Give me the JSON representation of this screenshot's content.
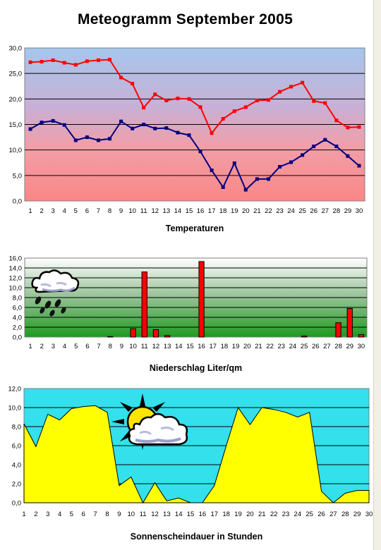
{
  "page": {
    "title": "Meteogramm  September 2005"
  },
  "chart_data": [
    {
      "type": "line",
      "xlabel": "Temperaturen",
      "ylim": [
        0,
        30
      ],
      "y_ticks": [
        "0,0",
        "5,0",
        "10,0",
        "15,0",
        "20,0",
        "25,0",
        "30,0"
      ],
      "grid": true,
      "categories": [
        "1",
        "2",
        "3",
        "4",
        "5",
        "6",
        "7",
        "8",
        "9",
        "10",
        "11",
        "12",
        "13",
        "14",
        "15",
        "16",
        "17",
        "18",
        "19",
        "20",
        "21",
        "22",
        "23",
        "24",
        "25",
        "26",
        "27",
        "28",
        "29",
        "30"
      ],
      "series": [
        {
          "color": "#ff0000",
          "values": [
            27.2,
            27.3,
            27.6,
            27.1,
            26.7,
            27.4,
            27.6,
            27.7,
            24.2,
            23.0,
            18.3,
            20.9,
            19.7,
            20.1,
            20.0,
            18.4,
            13.3,
            16.1,
            17.6,
            18.4,
            19.7,
            19.8,
            21.4,
            22.4,
            23.2,
            19.6,
            19.2,
            15.8,
            14.4,
            14.5
          ]
        },
        {
          "color": "#000080",
          "values": [
            14.1,
            15.4,
            15.7,
            14.9,
            11.9,
            12.5,
            11.9,
            12.2,
            15.6,
            14.2,
            15.0,
            14.2,
            14.3,
            13.4,
            12.9,
            9.7,
            6.0,
            2.7,
            7.4,
            2.2,
            4.3,
            4.3,
            6.7,
            7.6,
            9.0,
            10.7,
            12.0,
            10.7,
            8.8,
            6.9
          ]
        }
      ]
    },
    {
      "type": "bar",
      "xlabel": "Niederschlag Liter/qm",
      "ylim": [
        0,
        16
      ],
      "y_ticks": [
        "0,0",
        "2,0",
        "4,0",
        "6,0",
        "8,0",
        "10,0",
        "12,0",
        "14,0",
        "16,0"
      ],
      "grid": true,
      "bar_color": "#ff0000",
      "categories": [
        "1",
        "2",
        "3",
        "4",
        "5",
        "6",
        "7",
        "8",
        "9",
        "10",
        "11",
        "12",
        "13",
        "14",
        "15",
        "16",
        "17",
        "18",
        "19",
        "20",
        "21",
        "22",
        "23",
        "24",
        "25",
        "26",
        "27",
        "28",
        "29",
        "30"
      ],
      "values": [
        0,
        0,
        0,
        0,
        0,
        0,
        0,
        0.1,
        0,
        1.7,
        13.2,
        1.5,
        0.3,
        0,
        0,
        15.3,
        0,
        0,
        0,
        0,
        0,
        0,
        0,
        0,
        0.2,
        0,
        0,
        2.9,
        5.8,
        0.5
      ]
    },
    {
      "type": "area",
      "xlabel": "Sonnenscheindauer in Stunden",
      "ylim": [
        0,
        12
      ],
      "y_ticks": [
        "0,0",
        "2,0",
        "4,0",
        "6,0",
        "8,0",
        "10,0",
        "12,0"
      ],
      "grid": true,
      "area_color": "#ffff00",
      "categories": [
        "1",
        "2",
        "3",
        "4",
        "5",
        "6",
        "7",
        "8",
        "9",
        "10",
        "11",
        "12",
        "13",
        "14",
        "15",
        "16",
        "17",
        "18",
        "19",
        "20",
        "21",
        "22",
        "23",
        "24",
        "25",
        "26",
        "27",
        "28",
        "29",
        "30"
      ],
      "values": [
        8.3,
        5.9,
        9.3,
        8.7,
        9.9,
        10.1,
        10.2,
        9.5,
        1.8,
        2.7,
        0.0,
        2.1,
        0.2,
        0.5,
        0.0,
        0.0,
        1.8,
        6.0,
        10.0,
        8.2,
        10.0,
        9.8,
        9.5,
        9.0,
        9.5,
        1.2,
        0.0,
        1.0,
        1.3,
        1.3
      ]
    }
  ]
}
